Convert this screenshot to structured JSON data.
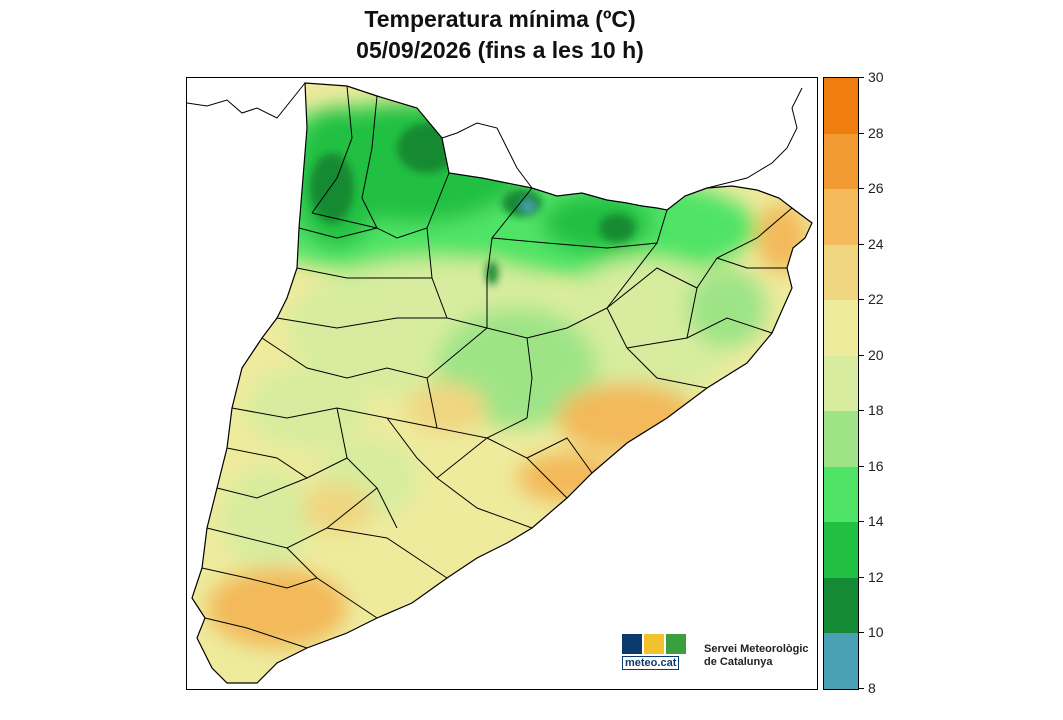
{
  "header": {
    "title_line1": "Temperatura mínima (ºC)",
    "title_line2": "05/09/2026 (fins a les 10 h)"
  },
  "legend": {
    "ticks": [
      "30",
      "28",
      "26",
      "24",
      "22",
      "20",
      "18",
      "16",
      "14",
      "12",
      "10",
      "8"
    ],
    "bins": [
      {
        "from": 28,
        "to": 30,
        "color": "#ef7d10"
      },
      {
        "from": 26,
        "to": 28,
        "color": "#f29a32"
      },
      {
        "from": 24,
        "to": 26,
        "color": "#f3b95a"
      },
      {
        "from": 22,
        "to": 24,
        "color": "#f0d680"
      },
      {
        "from": 20,
        "to": 22,
        "color": "#eeeb9d"
      },
      {
        "from": 18,
        "to": 20,
        "color": "#d7ec9e"
      },
      {
        "from": 16,
        "to": 18,
        "color": "#9ee487"
      },
      {
        "from": 14,
        "to": 16,
        "color": "#4fe466"
      },
      {
        "from": 12,
        "to": 14,
        "color": "#21c043"
      },
      {
        "from": 10,
        "to": 12,
        "color": "#138a33"
      },
      {
        "from": 8,
        "to": 10,
        "color": "#4aa0b5"
      }
    ]
  },
  "map": {
    "region": "Catalunya",
    "background_color": "#ffffff",
    "border_color": "#000000"
  },
  "logo": {
    "text": "meteo.cat",
    "colors": [
      "#0b3a6e",
      "#f2c12e",
      "#3a9e3f"
    ]
  },
  "service": {
    "line1": "Servei Meteorològic",
    "line2": "de Catalunya"
  }
}
